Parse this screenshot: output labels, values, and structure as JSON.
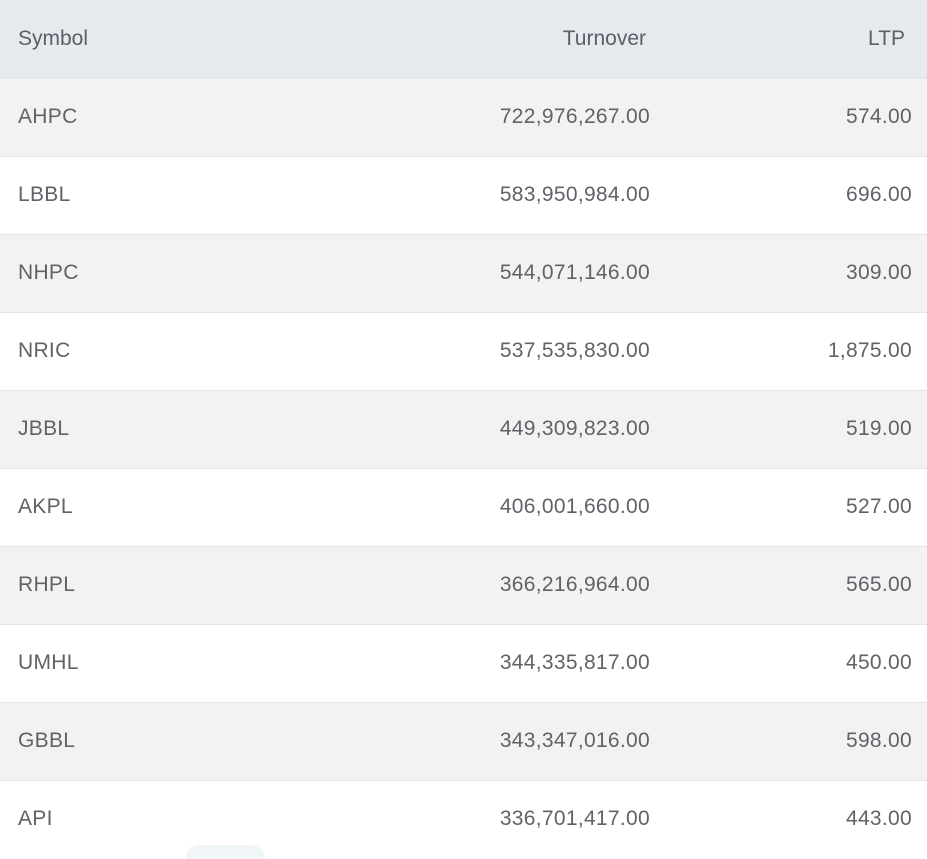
{
  "table": {
    "headers": {
      "symbol": "Symbol",
      "turnover": "Turnover",
      "ltp": "LTP"
    },
    "rows": [
      {
        "symbol": "AHPC",
        "turnover": "722,976,267.00",
        "ltp": "574.00"
      },
      {
        "symbol": "LBBL",
        "turnover": "583,950,984.00",
        "ltp": "696.00"
      },
      {
        "symbol": "NHPC",
        "turnover": "544,071,146.00",
        "ltp": "309.00"
      },
      {
        "symbol": "NRIC",
        "turnover": "537,535,830.00",
        "ltp": "1,875.00"
      },
      {
        "symbol": "JBBL",
        "turnover": "449,309,823.00",
        "ltp": "519.00"
      },
      {
        "symbol": "AKPL",
        "turnover": "406,001,660.00",
        "ltp": "527.00"
      },
      {
        "symbol": "RHPL",
        "turnover": "366,216,964.00",
        "ltp": "565.00"
      },
      {
        "symbol": "UMHL",
        "turnover": "344,335,817.00",
        "ltp": "450.00"
      },
      {
        "symbol": "GBBL",
        "turnover": "343,347,016.00",
        "ltp": "598.00"
      },
      {
        "symbol": "API",
        "turnover": "336,701,417.00",
        "ltp": "443.00"
      }
    ]
  }
}
